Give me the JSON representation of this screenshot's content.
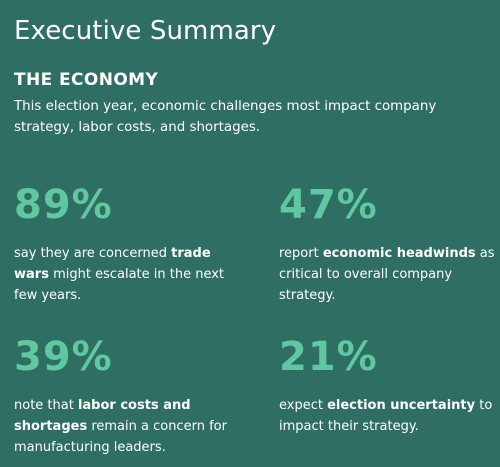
{
  "title": "Executive Summary",
  "section": {
    "heading": "THE ECONOMY",
    "intro": "This election year, economic challenges most impact company strategy, labor costs, and shortages."
  },
  "stats": [
    {
      "value": "89%",
      "before": "say they are concerned ",
      "bold": "trade wars",
      "after": " might escalate in the next few years."
    },
    {
      "value": "47%",
      "before": "report ",
      "bold": "economic headwinds",
      "after": " as critical to overall company strategy."
    },
    {
      "value": "39%",
      "before": "note that ",
      "bold": "labor costs and shortages",
      "after": " remain a concern for manufacturing leaders."
    },
    {
      "value": "21%",
      "before": "expect ",
      "bold": "election uncertainty",
      "after": " to impact their strategy."
    }
  ]
}
